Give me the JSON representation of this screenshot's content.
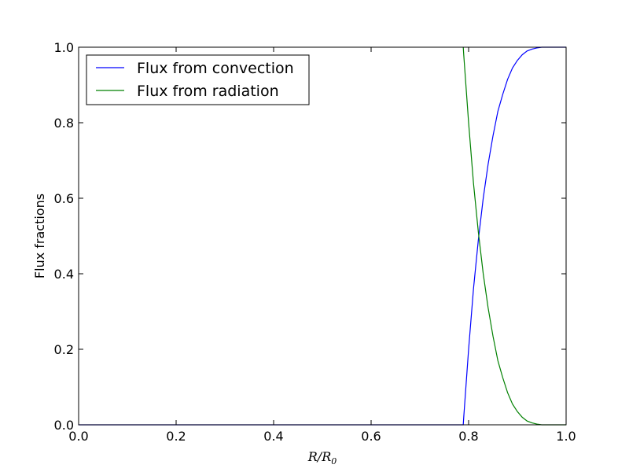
{
  "chart_data": {
    "type": "line",
    "title": "",
    "xlabel": "R/R0",
    "ylabel": "Flux fractions",
    "xlim": [
      0.0,
      1.0
    ],
    "ylim": [
      0.0,
      1.0
    ],
    "xticks": [
      "0.0",
      "0.2",
      "0.4",
      "0.6",
      "0.8",
      "1.0"
    ],
    "yticks": [
      "0.0",
      "0.2",
      "0.4",
      "0.6",
      "0.8",
      "1.0"
    ],
    "grid": false,
    "legend_position": "top-left",
    "series": [
      {
        "name": "Flux from convection",
        "color": "#0000ff",
        "x": [
          0.0,
          0.789,
          0.79,
          0.8,
          0.81,
          0.82,
          0.83,
          0.84,
          0.85,
          0.86,
          0.87,
          0.88,
          0.89,
          0.9,
          0.91,
          0.92,
          0.93,
          0.94,
          0.95,
          0.97,
          1.0
        ],
        "y": [
          0.0,
          0.0,
          0.02,
          0.2,
          0.36,
          0.49,
          0.6,
          0.69,
          0.765,
          0.83,
          0.875,
          0.915,
          0.945,
          0.965,
          0.98,
          0.99,
          0.995,
          0.998,
          1.0,
          1.0,
          1.0
        ]
      },
      {
        "name": "Flux from radiation",
        "color": "#008000",
        "x": [
          0.789,
          0.79,
          0.8,
          0.81,
          0.82,
          0.83,
          0.84,
          0.85,
          0.86,
          0.87,
          0.88,
          0.89,
          0.9,
          0.91,
          0.92,
          0.93,
          0.94,
          0.95,
          0.97,
          1.0
        ],
        "y": [
          1.0,
          0.98,
          0.8,
          0.64,
          0.51,
          0.4,
          0.31,
          0.235,
          0.17,
          0.125,
          0.085,
          0.055,
          0.035,
          0.02,
          0.01,
          0.005,
          0.002,
          0.0,
          0.0,
          0.0
        ]
      }
    ]
  }
}
